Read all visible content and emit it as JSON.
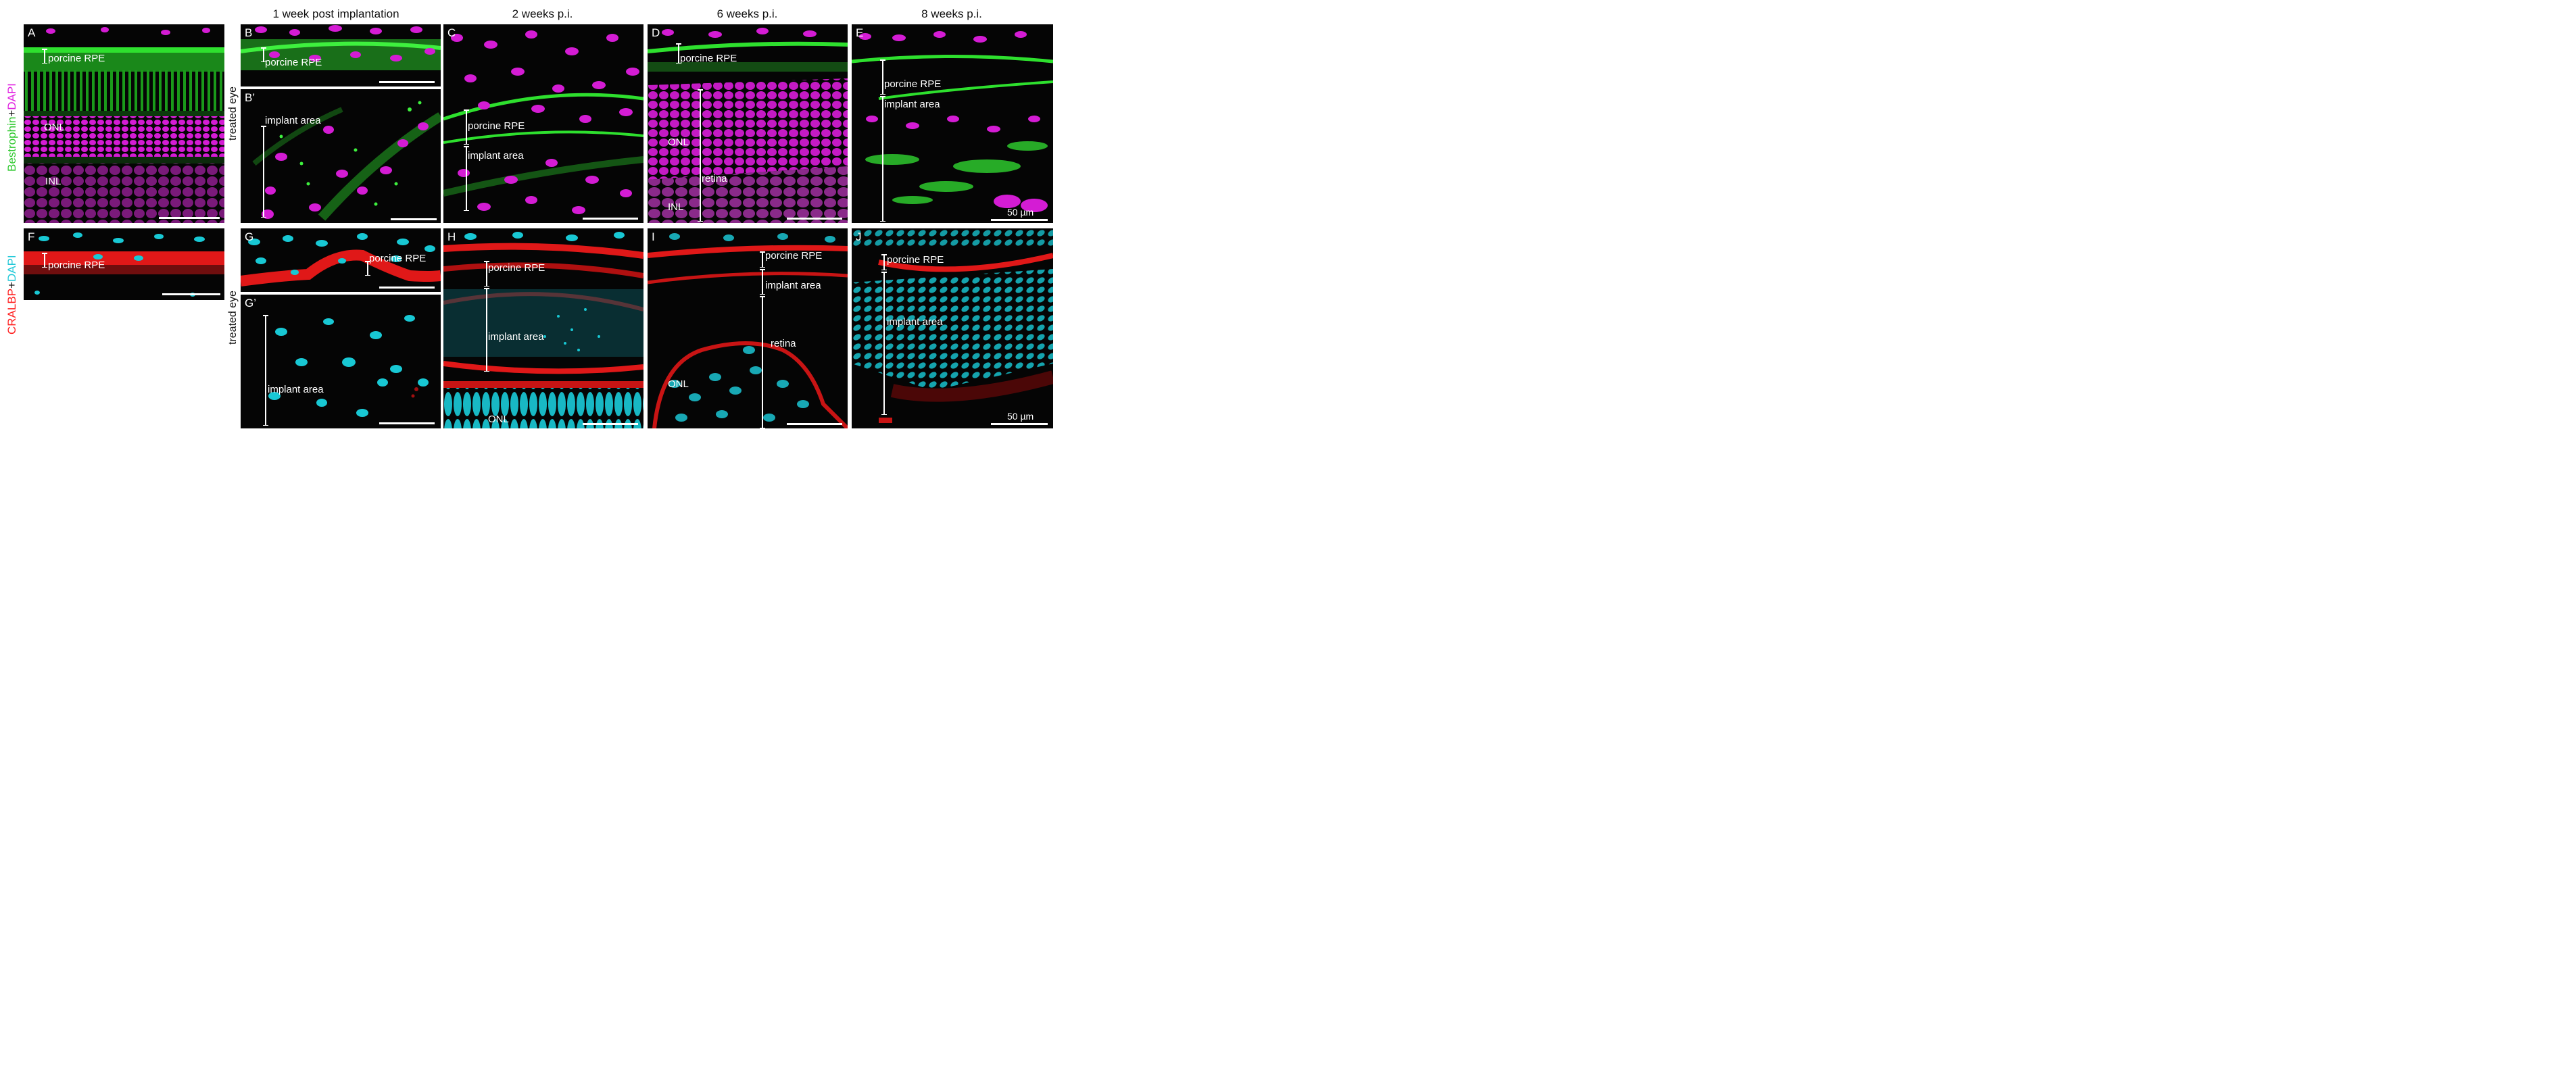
{
  "columns": [
    "1 week post implantation",
    "2 weeks p.i.",
    "6 weeks p.i.",
    "8 weeks p.i."
  ],
  "row_labels": {
    "top": {
      "a": "Bestrophin",
      "plus": "+",
      "b": "DAPI",
      "color_a": "#2ee02e",
      "color_b": "#e020e0"
    },
    "bottom": {
      "a": "CRALBP",
      "plus": "+",
      "b": "DAPI",
      "color_a": "#ff2020",
      "color_b": "#20d0e0"
    }
  },
  "side_labels": {
    "treated_eye_top": "treated eye",
    "treated_eye_bottom": "treated eye"
  },
  "panels": {
    "A": {
      "label": "A",
      "ann": [
        "porcine RPE",
        "ONL",
        "INL"
      ]
    },
    "B": {
      "label": "B",
      "ann": [
        "porcine RPE"
      ]
    },
    "B2": {
      "label": "B’",
      "ann": [
        "implant area"
      ]
    },
    "C": {
      "label": "C",
      "ann": [
        "porcine RPE",
        "implant area"
      ]
    },
    "D": {
      "label": "D",
      "ann": [
        "porcine RPE",
        "ONL",
        "retina",
        "INL"
      ]
    },
    "E": {
      "label": "E",
      "ann": [
        "porcine RPE",
        "implant area"
      ],
      "scale": "50 µm"
    },
    "F": {
      "label": "F",
      "ann": [
        "porcine RPE"
      ]
    },
    "G": {
      "label": "G",
      "ann": [
        "porcine RPE"
      ]
    },
    "G2": {
      "label": "G’",
      "ann": [
        "implant area"
      ]
    },
    "H": {
      "label": "H",
      "ann": [
        "porcine RPE",
        "implant area",
        "ONL"
      ]
    },
    "I": {
      "label": "I",
      "ann": [
        "porcine RPE",
        "implant area",
        "retina",
        "ONL"
      ]
    },
    "J": {
      "label": "J",
      "ann": [
        "porcine RPE",
        "implant area"
      ],
      "scale": "50 µm"
    }
  },
  "colors": {
    "bestrophin": "#22d022",
    "dapi_top": "#d81ed8",
    "cralbp": "#e01818",
    "dapi_bottom": "#18c8d4"
  }
}
